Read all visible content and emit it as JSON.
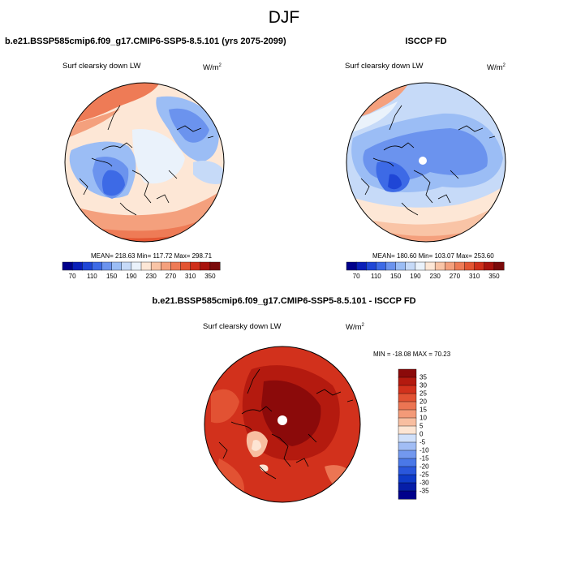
{
  "title": "DJF",
  "colors": {
    "abs_scale": [
      "#00008b",
      "#0a1fb8",
      "#1f46d6",
      "#3d6ae6",
      "#6b93ee",
      "#9bbdf5",
      "#c6daf8",
      "#eaf2fb",
      "#fde7d6",
      "#f9c4a6",
      "#f4a07d",
      "#ee7b56",
      "#e35532",
      "#cf2f1a",
      "#a8130d",
      "#7a0a0a"
    ],
    "diff_scale": [
      "#00008b",
      "#061ea8",
      "#0f3bc8",
      "#2a57dc",
      "#4a78e8",
      "#7298ef",
      "#a1bdf5",
      "#d0e0fa",
      "#fde5d3",
      "#f8bea0",
      "#f39a78",
      "#ec7553",
      "#e25233",
      "#d2311c",
      "#b41a0f",
      "#8b0a0a"
    ]
  },
  "chart_data": [
    {
      "type": "heatmap",
      "projection": "polar-stereographic-north",
      "title": "b.e21.BSSP585cmip6.f09_g17.CMIP6-SSP5-8.5.101 (yrs 2075-2099)",
      "variable": "Surf clearsky down LW",
      "units": "W/m2",
      "stats_text": "MEAN= 218.63  Min= 117.72  Max= 298.71",
      "mean": 218.63,
      "min": 117.72,
      "max": 298.71,
      "colorbar_labels": [
        "70",
        "110",
        "150",
        "190",
        "230",
        "270",
        "310",
        "350"
      ]
    },
    {
      "type": "heatmap",
      "projection": "polar-stereographic-north",
      "title": "ISCCP FD",
      "variable": "Surf clearsky down LW",
      "units": "W/m2",
      "stats_text": "MEAN= 180.60  Min= 103.07  Max= 253.60",
      "mean": 180.6,
      "min": 103.07,
      "max": 253.6,
      "colorbar_labels": [
        "70",
        "110",
        "150",
        "190",
        "230",
        "270",
        "310",
        "350"
      ]
    },
    {
      "type": "heatmap",
      "projection": "polar-stereographic-north",
      "title": "b.e21.BSSP585cmip6.f09_g17.CMIP6-SSP5-8.5.101 - ISCCP FD",
      "variable": "Surf clearsky down LW",
      "units": "W/m2",
      "stats_text": "MIN = -18.08 MAX =  70.23",
      "min": -18.08,
      "max": 70.23,
      "colorbar_labels": [
        "35",
        "30",
        "25",
        "20",
        "15",
        "10",
        "5",
        "0",
        "-5",
        "-10",
        "-15",
        "-20",
        "-25",
        "-30",
        "-35"
      ]
    }
  ]
}
